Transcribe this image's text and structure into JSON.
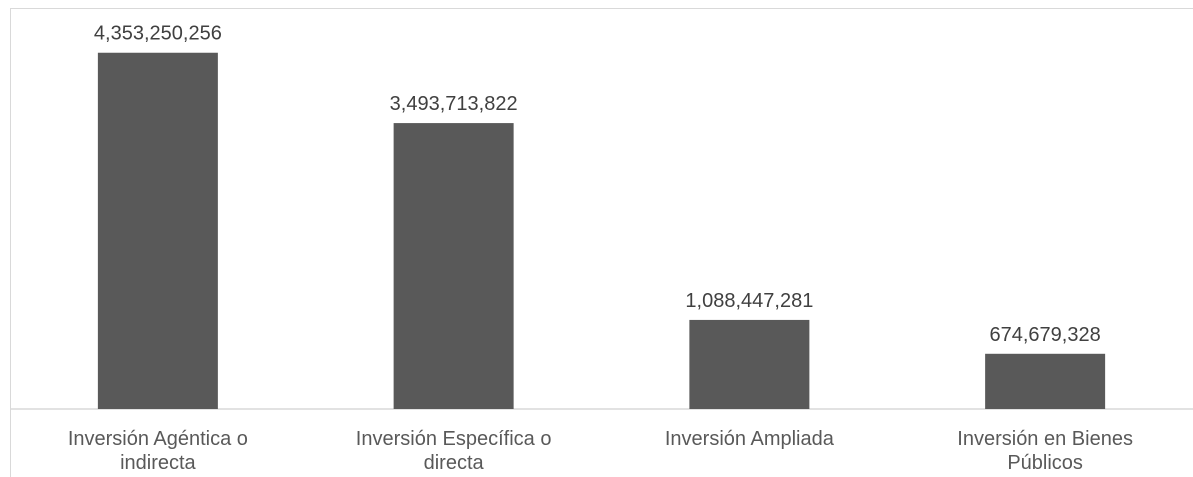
{
  "chart_data": {
    "type": "bar",
    "categories": [
      [
        "Inversión Agéntica o",
        "indirecta"
      ],
      [
        "Inversión Específica o",
        "directa"
      ],
      [
        "Inversión Ampliada"
      ],
      [
        "Inversión en Bienes",
        "Públicos"
      ]
    ],
    "values": [
      4353250256,
      3493713822,
      1088447281,
      674679328
    ],
    "data_labels": [
      "4,353,250,256",
      "3,493,713,822",
      "1,088,447,281",
      "674,679,328"
    ],
    "title": "",
    "xlabel": "",
    "ylabel": "",
    "ylim": [
      0,
      4900000000
    ],
    "grid": false,
    "legend": "none",
    "colors": {
      "bar": "#595959",
      "axis": "#d9d9d9",
      "label": "#404040"
    }
  }
}
